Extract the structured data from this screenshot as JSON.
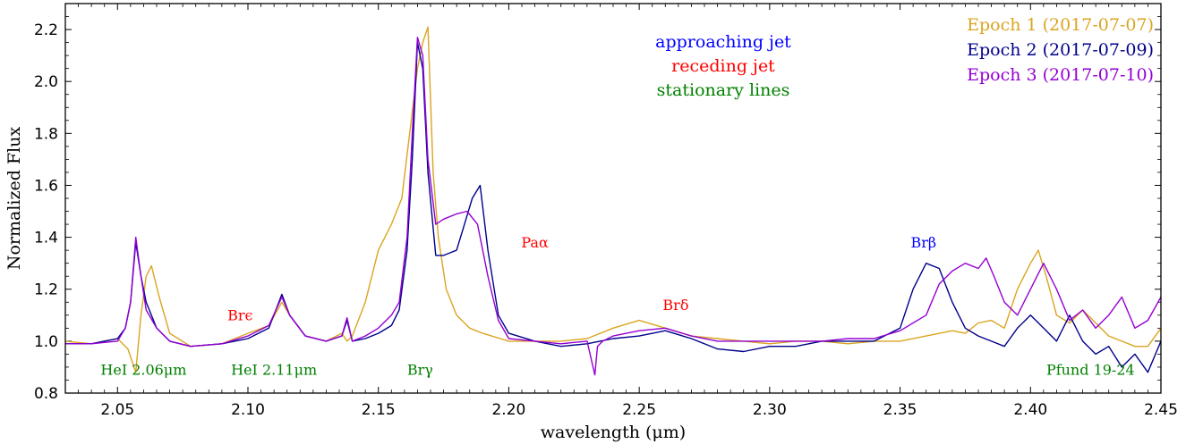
{
  "chart_data": {
    "type": "line",
    "xlabel": "wavelength (μm)",
    "ylabel": "Normalized Flux",
    "xlim": [
      2.03,
      2.45
    ],
    "ylim": [
      0.8,
      2.3
    ],
    "xticks": [
      2.05,
      2.1,
      2.15,
      2.2,
      2.25,
      2.3,
      2.35,
      2.4,
      2.45
    ],
    "xtick_labels": [
      "2.05",
      "2.10",
      "2.15",
      "2.20",
      "2.25",
      "2.30",
      "2.35",
      "2.40",
      "2.45"
    ],
    "yticks": [
      0.8,
      1.0,
      1.2,
      1.4,
      1.6,
      1.8,
      2.0,
      2.2
    ],
    "ytick_labels": [
      "0.8",
      "1.0",
      "1.2",
      "1.4",
      "1.6",
      "1.8",
      "2.0",
      "2.2"
    ],
    "grid": false,
    "legend_position": "top-right",
    "series": [
      {
        "name": "Epoch 1 (2017-07-07)",
        "color": "#DAA520",
        "x": [
          2.03,
          2.04,
          2.05,
          2.054,
          2.057,
          2.059,
          2.061,
          2.063,
          2.066,
          2.07,
          2.078,
          2.09,
          2.1,
          2.108,
          2.113,
          2.116,
          2.122,
          2.13,
          2.136,
          2.138,
          2.14,
          2.145,
          2.15,
          2.155,
          2.159,
          2.162,
          2.165,
          2.167,
          2.169,
          2.171,
          2.173,
          2.176,
          2.18,
          2.185,
          2.19,
          2.2,
          2.21,
          2.22,
          2.23,
          2.24,
          2.25,
          2.26,
          2.27,
          2.28,
          2.29,
          2.3,
          2.31,
          2.32,
          2.33,
          2.34,
          2.35,
          2.36,
          2.37,
          2.375,
          2.38,
          2.385,
          2.39,
          2.395,
          2.4,
          2.403,
          2.406,
          2.41,
          2.415,
          2.42,
          2.425,
          2.43,
          2.435,
          2.44,
          2.445,
          2.45
        ],
        "y": [
          1.0,
          0.99,
          1.01,
          0.97,
          0.88,
          1.1,
          1.25,
          1.29,
          1.17,
          1.03,
          0.98,
          0.99,
          1.03,
          1.06,
          1.15,
          1.1,
          1.02,
          1.0,
          1.03,
          1.0,
          1.02,
          1.15,
          1.35,
          1.45,
          1.55,
          1.8,
          2.05,
          2.15,
          2.21,
          1.65,
          1.4,
          1.2,
          1.1,
          1.05,
          1.03,
          1.0,
          1.0,
          1.0,
          1.01,
          1.05,
          1.08,
          1.05,
          1.02,
          1.01,
          1.0,
          0.99,
          1.0,
          1.0,
          0.99,
          1.0,
          1.0,
          1.02,
          1.04,
          1.03,
          1.07,
          1.08,
          1.05,
          1.2,
          1.3,
          1.35,
          1.25,
          1.1,
          1.07,
          1.12,
          1.07,
          1.02,
          1.0,
          0.98,
          0.98,
          1.05
        ]
      },
      {
        "name": "Epoch 2 (2017-07-09)",
        "color": "#00008B",
        "x": [
          2.03,
          2.04,
          2.05,
          2.053,
          2.055,
          2.057,
          2.059,
          2.061,
          2.065,
          2.07,
          2.078,
          2.09,
          2.1,
          2.108,
          2.113,
          2.116,
          2.122,
          2.13,
          2.136,
          2.138,
          2.14,
          2.145,
          2.15,
          2.155,
          2.158,
          2.161,
          2.163,
          2.165,
          2.167,
          2.169,
          2.172,
          2.175,
          2.18,
          2.183,
          2.186,
          2.189,
          2.192,
          2.196,
          2.2,
          2.21,
          2.22,
          2.23,
          2.24,
          2.25,
          2.26,
          2.27,
          2.28,
          2.29,
          2.3,
          2.31,
          2.32,
          2.33,
          2.34,
          2.35,
          2.355,
          2.36,
          2.365,
          2.37,
          2.375,
          2.38,
          2.385,
          2.39,
          2.395,
          2.4,
          2.405,
          2.41,
          2.415,
          2.42,
          2.425,
          2.43,
          2.435,
          2.44,
          2.445,
          2.45
        ],
        "y": [
          0.99,
          0.99,
          1.01,
          1.05,
          1.15,
          1.38,
          1.25,
          1.15,
          1.05,
          1.0,
          0.98,
          0.99,
          1.01,
          1.05,
          1.18,
          1.1,
          1.02,
          1.0,
          1.02,
          1.08,
          1.0,
          1.01,
          1.03,
          1.06,
          1.12,
          1.35,
          1.7,
          2.15,
          2.05,
          1.65,
          1.33,
          1.33,
          1.35,
          1.45,
          1.55,
          1.6,
          1.35,
          1.1,
          1.03,
          1.0,
          0.98,
          0.99,
          1.01,
          1.02,
          1.04,
          1.01,
          0.97,
          0.96,
          0.98,
          0.98,
          1.0,
          1.0,
          1.0,
          1.05,
          1.2,
          1.3,
          1.28,
          1.15,
          1.05,
          1.02,
          1.0,
          0.98,
          1.05,
          1.1,
          1.05,
          1.0,
          1.1,
          1.0,
          0.95,
          0.98,
          0.9,
          0.95,
          0.88,
          1.0
        ]
      },
      {
        "name": "Epoch 3 (2017-07-10)",
        "color": "#9400D3",
        "x": [
          2.03,
          2.04,
          2.05,
          2.053,
          2.055,
          2.057,
          2.059,
          2.061,
          2.065,
          2.07,
          2.078,
          2.09,
          2.1,
          2.108,
          2.113,
          2.116,
          2.122,
          2.13,
          2.136,
          2.138,
          2.14,
          2.145,
          2.15,
          2.155,
          2.158,
          2.161,
          2.163,
          2.165,
          2.167,
          2.169,
          2.172,
          2.175,
          2.18,
          2.184,
          2.188,
          2.192,
          2.196,
          2.2,
          2.21,
          2.22,
          2.23,
          2.233,
          2.234,
          2.236,
          2.24,
          2.25,
          2.26,
          2.27,
          2.28,
          2.29,
          2.3,
          2.31,
          2.32,
          2.33,
          2.34,
          2.35,
          2.36,
          2.365,
          2.37,
          2.375,
          2.38,
          2.383,
          2.386,
          2.39,
          2.395,
          2.4,
          2.405,
          2.41,
          2.415,
          2.42,
          2.425,
          2.43,
          2.435,
          2.44,
          2.445,
          2.45
        ],
        "y": [
          0.99,
          0.99,
          1.0,
          1.05,
          1.15,
          1.4,
          1.25,
          1.12,
          1.05,
          1.0,
          0.98,
          0.99,
          1.02,
          1.06,
          1.17,
          1.1,
          1.02,
          1.0,
          1.02,
          1.09,
          1.0,
          1.02,
          1.05,
          1.1,
          1.15,
          1.4,
          1.8,
          2.17,
          2.1,
          1.7,
          1.45,
          1.47,
          1.49,
          1.5,
          1.45,
          1.25,
          1.08,
          1.01,
          1.0,
          0.99,
          1.0,
          0.87,
          0.98,
          1.0,
          1.02,
          1.04,
          1.05,
          1.02,
          1.0,
          1.0,
          1.0,
          1.0,
          1.0,
          1.01,
          1.01,
          1.04,
          1.1,
          1.22,
          1.27,
          1.3,
          1.28,
          1.32,
          1.25,
          1.15,
          1.1,
          1.2,
          1.3,
          1.2,
          1.08,
          1.12,
          1.05,
          1.1,
          1.17,
          1.05,
          1.08,
          1.17
        ]
      }
    ],
    "annotations": [
      {
        "text": "approaching jet",
        "color": "#0000ff",
        "role": "legend-key"
      },
      {
        "text": "receding jet",
        "color": "#ff0000",
        "role": "legend-key"
      },
      {
        "text": "stationary lines",
        "color": "#008000",
        "role": "legend-key"
      },
      {
        "text": "HeI 2.06μm",
        "color": "#008000",
        "x": 2.06,
        "y": 0.87
      },
      {
        "text": "HeI 2.11μm",
        "color": "#008000",
        "x": 2.11,
        "y": 0.87
      },
      {
        "text": "Brγ",
        "color": "#008000",
        "x": 2.166,
        "y": 0.87
      },
      {
        "text": "Pfund 19-24",
        "color": "#008000",
        "x": 2.423,
        "y": 0.87
      },
      {
        "text": "Brϵ",
        "color": "#ff0000",
        "x": 2.097,
        "y": 1.08
      },
      {
        "text": "Paα",
        "color": "#ff0000",
        "x": 2.21,
        "y": 1.36
      },
      {
        "text": "Brδ",
        "color": "#ff0000",
        "x": 2.264,
        "y": 1.12
      },
      {
        "text": "Brβ",
        "color": "#0000ff",
        "x": 2.359,
        "y": 1.36
      }
    ]
  }
}
